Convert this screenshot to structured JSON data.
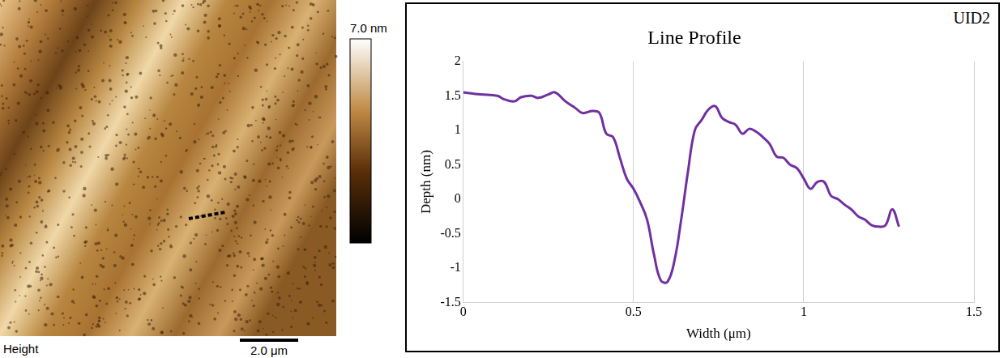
{
  "chart_data": {
    "type": "line",
    "title": "Line Profile",
    "annotation": "UID2",
    "x_label": "Width (μm)",
    "y_label": "Depth (nm)",
    "x": [
      0,
      0.05,
      0.1,
      0.12,
      0.15,
      0.17,
      0.2,
      0.22,
      0.25,
      0.27,
      0.3,
      0.33,
      0.35,
      0.38,
      0.4,
      0.42,
      0.44,
      0.46,
      0.48,
      0.5,
      0.52,
      0.54,
      0.56,
      0.58,
      0.6,
      0.62,
      0.64,
      0.66,
      0.68,
      0.7,
      0.72,
      0.74,
      0.76,
      0.78,
      0.8,
      0.82,
      0.84,
      0.86,
      0.88,
      0.9,
      0.92,
      0.94,
      0.96,
      0.98,
      1.0,
      1.02,
      1.04,
      1.06,
      1.08,
      1.1,
      1.12,
      1.14,
      1.16,
      1.18,
      1.2,
      1.22,
      1.24,
      1.26,
      1.28
    ],
    "values": [
      1.55,
      1.52,
      1.5,
      1.45,
      1.42,
      1.48,
      1.5,
      1.47,
      1.52,
      1.55,
      1.42,
      1.32,
      1.25,
      1.28,
      1.25,
      0.95,
      0.9,
      0.6,
      0.3,
      0.15,
      -0.05,
      -0.3,
      -0.8,
      -1.18,
      -1.2,
      -0.9,
      -0.3,
      0.4,
      1.0,
      1.15,
      1.3,
      1.35,
      1.18,
      1.12,
      1.08,
      0.95,
      1.02,
      0.98,
      0.9,
      0.8,
      0.62,
      0.6,
      0.5,
      0.45,
      0.3,
      0.15,
      0.25,
      0.25,
      0.05,
      0.0,
      -0.08,
      -0.15,
      -0.25,
      -0.3,
      -0.38,
      -0.4,
      -0.38,
      -0.15,
      -0.4
    ],
    "color": "#7030a0",
    "xlim": [
      0,
      1.5
    ],
    "xticks": [
      0,
      0.5,
      1,
      1.5
    ],
    "ylim": [
      -1.5,
      2
    ],
    "yticks": [
      -1.5,
      -1,
      -0.5,
      0,
      0.5,
      1,
      1.5,
      2
    ],
    "grid": "x"
  },
  "image_panel": {
    "label": "Height",
    "scale_bar": "2.0 μm",
    "color_bar_label": "7.0 nm"
  }
}
